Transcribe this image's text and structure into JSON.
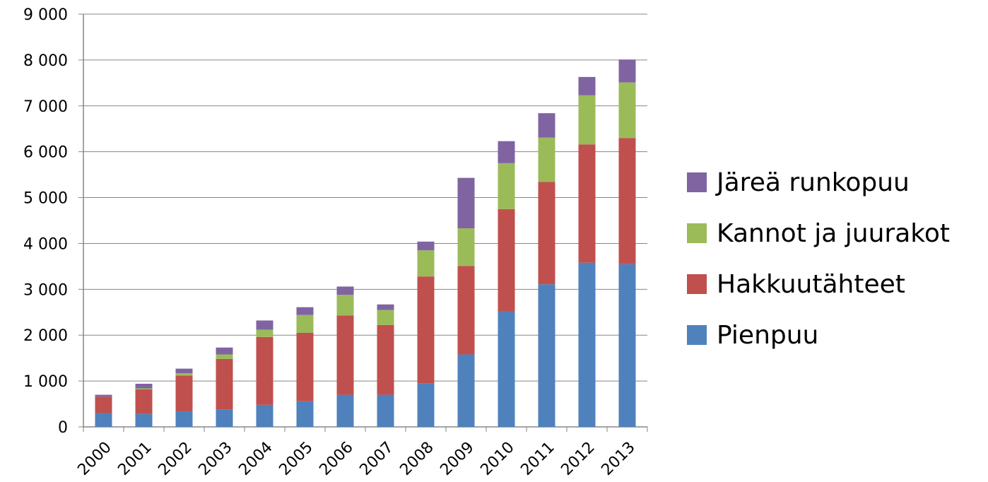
{
  "chart_data": {
    "type": "bar",
    "stacked": true,
    "categories": [
      "2000",
      "2001",
      "2002",
      "2003",
      "2004",
      "2005",
      "2006",
      "2007",
      "2008",
      "2009",
      "2010",
      "2011",
      "2012",
      "2013"
    ],
    "series": [
      {
        "name": "Pienpuu",
        "color": "#4F81BD",
        "values": [
          300,
          280,
          340,
          380,
          480,
          560,
          700,
          700,
          950,
          1580,
          2520,
          3110,
          3580,
          3550
        ]
      },
      {
        "name": "Hakkuutähteet",
        "color": "#C0504D",
        "values": [
          360,
          540,
          780,
          1100,
          1480,
          1490,
          1730,
          1520,
          2330,
          1930,
          2230,
          2230,
          2580,
          2750
        ]
      },
      {
        "name": "Kannot ja juurakot",
        "color": "#9BBB59",
        "values": [
          0,
          20,
          50,
          100,
          160,
          390,
          450,
          330,
          570,
          820,
          1000,
          970,
          1070,
          1210
        ]
      },
      {
        "name": "Järeä runkopuu",
        "color": "#8064A2",
        "values": [
          40,
          100,
          100,
          150,
          200,
          170,
          180,
          120,
          190,
          1100,
          480,
          530,
          400,
          500
        ]
      }
    ],
    "yticks": [
      "0",
      "1 000",
      "2 000",
      "3 000",
      "4 000",
      "5 000",
      "6 000",
      "7 000",
      "8 000",
      "9 000"
    ],
    "ylim": [
      0,
      9000
    ],
    "title": "",
    "xlabel": "",
    "ylabel": "",
    "legend_position": "right",
    "grid": "horizontal"
  },
  "legend": {
    "items": [
      {
        "label": "Järeä runkopuu",
        "color": "#8064A2"
      },
      {
        "label": "Kannot ja juurakot",
        "color": "#9BBB59"
      },
      {
        "label": "Hakkuutähteet",
        "color": "#C0504D"
      },
      {
        "label": "Pienpuu",
        "color": "#4F81BD"
      }
    ]
  }
}
